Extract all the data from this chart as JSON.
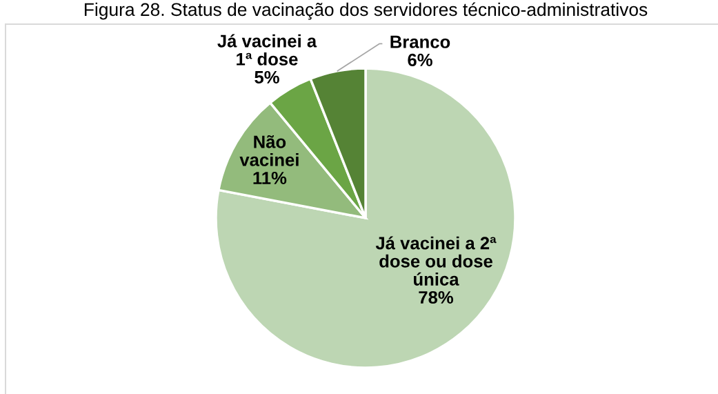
{
  "chart_data": {
    "type": "pie",
    "title": "Figura 28. Status de vacinação dos servidores técnico-administrativos",
    "categories": [
      "Já vacinei a 2ª\ndose ou dose\núnica",
      "Não\nvacinei",
      "Já vacinei a\n1ª dose",
      "Branco"
    ],
    "values": [
      78,
      11,
      5,
      6
    ],
    "colors": [
      "#bdd6b3",
      "#93bb7c",
      "#6ba545",
      "#558335"
    ],
    "value_labels": [
      "78%",
      "11%",
      "5%",
      "6%"
    ]
  }
}
